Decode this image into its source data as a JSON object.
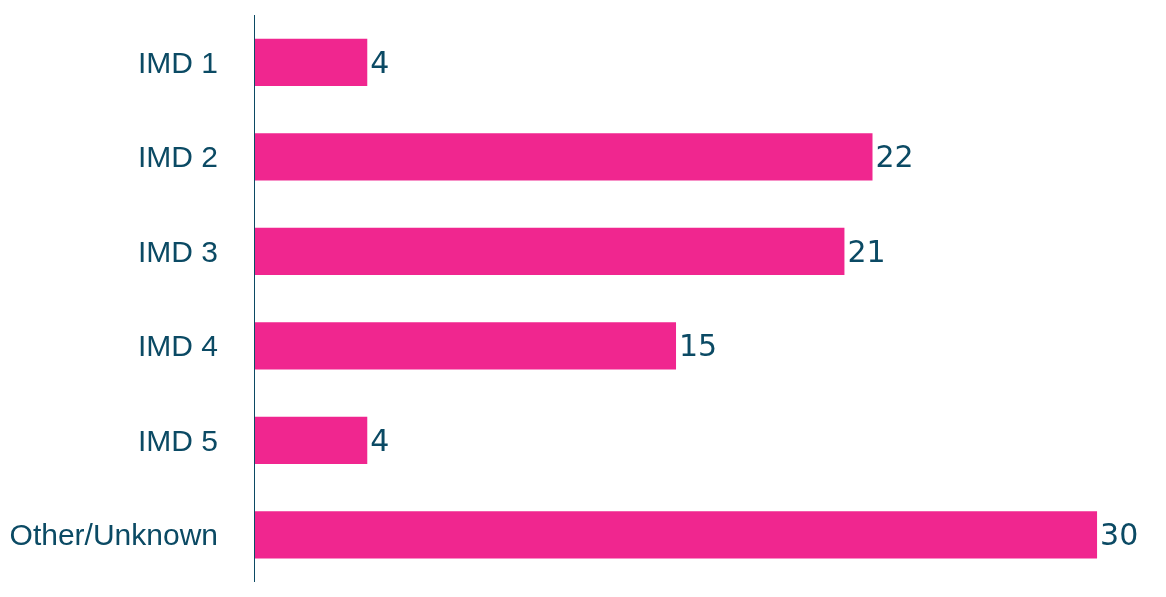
{
  "chart_data": {
    "type": "bar",
    "orientation": "horizontal",
    "categories": [
      "IMD 1",
      "IMD 2",
      "IMD 3",
      "IMD 4",
      "IMD 5",
      "Other/Unknown"
    ],
    "values": [
      4,
      22,
      21,
      15,
      4,
      30
    ],
    "color": "#f0268f",
    "data_labels": true,
    "tick_labels": "y"
  }
}
